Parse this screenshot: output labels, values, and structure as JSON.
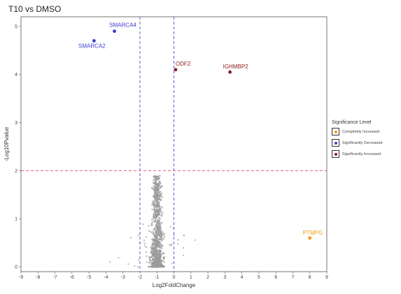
{
  "chart_data": {
    "type": "scatter",
    "title": "T10 vs DMSO",
    "xlabel": "Log2FoldChange",
    "ylabel": "-Log10Pvalue",
    "xlim": [
      -9,
      9
    ],
    "ylim": [
      -0.1,
      5.2
    ],
    "x_ticks": [
      -9,
      -8,
      -7,
      -6,
      -5,
      -4,
      -3,
      -2,
      -1,
      0,
      1,
      2,
      3,
      4,
      5,
      6,
      7,
      8,
      9
    ],
    "y_ticks": [
      0,
      1,
      2,
      3,
      4,
      5
    ],
    "grid": false,
    "thresholds": {
      "log2fc": [
        -2,
        0
      ],
      "neg_log10_p": 2
    },
    "legend": {
      "title": "Significance Level",
      "position": "right",
      "entries": [
        {
          "label": "Completely Increased",
          "color": "#f39c12"
        },
        {
          "label": "Significantly Decreased",
          "color": "#3b3bcf"
        },
        {
          "label": "Significantly Increased",
          "color": "#8b1a1a"
        }
      ]
    },
    "highlighted_points": [
      {
        "label": "SMARCA4",
        "x": -3.5,
        "y": 4.9,
        "group": "Significantly Decreased",
        "color": "#3b3bcf"
      },
      {
        "label": "SMARCA2",
        "x": -4.7,
        "y": 4.7,
        "group": "Significantly Decreased",
        "color": "#3b3bcf"
      },
      {
        "label": "ODF2",
        "x": 0.1,
        "y": 4.1,
        "group": "Significantly Increased",
        "color": "#8b1a1a"
      },
      {
        "label": "IGHMBP2",
        "x": 3.3,
        "y": 4.05,
        "group": "Significantly Increased",
        "color": "#8b1a1a"
      },
      {
        "label": "PTMPG",
        "x": 8.0,
        "y": 0.6,
        "group": "Completely Increased",
        "color": "#f39c12"
      }
    ],
    "background_points": {
      "description_color": "#9a9a9a",
      "center_x": -1.0,
      "count_visible": "many"
    }
  }
}
